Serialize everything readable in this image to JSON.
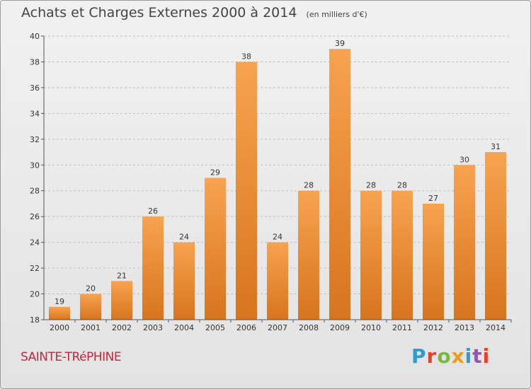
{
  "chart_title": "Achats et Charges Externes 2000 à 2014",
  "chart_unit": "(en milliers d'€)",
  "commune": "SAINTE-TRéPHINE",
  "logo": {
    "text": "Proxiti",
    "letters": [
      "P",
      "r",
      "o",
      "x",
      "i",
      "t",
      "i"
    ]
  },
  "colors": {
    "bar_top": "#f7a350",
    "bar_bottom": "#d8741e",
    "grid": "#bfbfbf",
    "axis": "#555555",
    "commune_text": "#c0283e"
  },
  "chart_data": {
    "type": "bar",
    "title": "Achats et Charges Externes 2000 à 2014",
    "subtitle": "(en milliers d'€)",
    "xlabel": "",
    "ylabel": "",
    "categories": [
      "2000",
      "2001",
      "2002",
      "2003",
      "2004",
      "2005",
      "2006",
      "2007",
      "2008",
      "2009",
      "2010",
      "2011",
      "2012",
      "2013",
      "2014"
    ],
    "values": [
      19,
      20,
      21,
      26,
      24,
      29,
      38,
      24,
      28,
      39,
      28,
      28,
      27,
      30,
      31
    ],
    "ylim": [
      18,
      40
    ],
    "yticks": [
      18,
      20,
      22,
      24,
      26,
      28,
      30,
      32,
      34,
      36,
      38,
      40
    ],
    "grid": true,
    "data_labels": true
  }
}
